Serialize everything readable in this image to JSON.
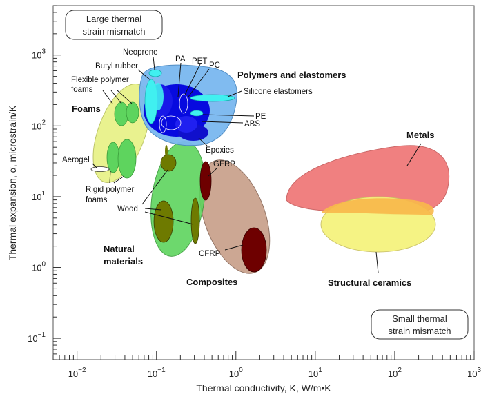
{
  "chart_data": {
    "type": "scatter",
    "xlabel": "Thermal conductivity, K, W/m•K",
    "ylabel": "Thermal expansion, α, microstrain/K",
    "xscale": "log",
    "yscale": "log",
    "xlim": [
      0.005,
      1000
    ],
    "ylim": [
      0.05,
      5000
    ],
    "x_ticks": [
      {
        "value": 0.01,
        "base": "10",
        "exp": "−2"
      },
      {
        "value": 0.1,
        "base": "10",
        "exp": "−1"
      },
      {
        "value": 1,
        "base": "10",
        "exp": "0"
      },
      {
        "value": 10,
        "base": "10",
        "exp": "1"
      },
      {
        "value": 100,
        "base": "10",
        "exp": "2"
      },
      {
        "value": 1000,
        "base": "10",
        "exp": "3"
      }
    ],
    "y_ticks": [
      {
        "value": 0.1,
        "base": "10",
        "exp": "−1"
      },
      {
        "value": 1,
        "base": "10",
        "exp": "0"
      },
      {
        "value": 10,
        "base": "10",
        "exp": "1"
      },
      {
        "value": 100,
        "base": "10",
        "exp": "2"
      },
      {
        "value": 1000,
        "base": "10",
        "exp": "3"
      }
    ],
    "corner_notes": {
      "top_left": [
        "Large thermal",
        "strain mismatch"
      ],
      "bottom_right": [
        "Small thermal",
        "strain mismatch"
      ]
    },
    "families": [
      {
        "name": "Polymers and elastomers",
        "x": 0.6,
        "y": 150,
        "color": "#7ab8f0"
      },
      {
        "name": "Foams",
        "x": 0.055,
        "y": 90,
        "color": "#e8f28a"
      },
      {
        "name": "Natural materials",
        "x": 0.3,
        "y": 10,
        "color": "#5ed45e"
      },
      {
        "name": "Composites",
        "x": 2,
        "y": 5,
        "color": "#c8a08a"
      },
      {
        "name": "Metals",
        "x": 120,
        "y": 20,
        "color": "#f07a7a"
      },
      {
        "name": "Structural ceramics",
        "x": 70,
        "y": 4,
        "color": "#f5f27a"
      }
    ],
    "materials": [
      {
        "name": "Neoprene",
        "x": 0.13,
        "y": 560,
        "color": "#40f0f0"
      },
      {
        "name": "Butyl rubber",
        "x": 0.13,
        "y": 200,
        "color": "#40f0f0"
      },
      {
        "name": "PA",
        "x": 0.28,
        "y": 170,
        "color": "#0000dd"
      },
      {
        "name": "PET",
        "x": 0.36,
        "y": 140,
        "color": "#0000dd"
      },
      {
        "name": "PC",
        "x": 0.45,
        "y": 140,
        "color": "#40f0f0"
      },
      {
        "name": "Silicone elastomers",
        "x": 1.0,
        "y": 250,
        "color": "#40f0f0"
      },
      {
        "name": "PE",
        "x": 0.45,
        "y": 135,
        "color": "#40f0f0"
      },
      {
        "name": "ABS",
        "x": 0.3,
        "y": 95,
        "color": "#0000dd"
      },
      {
        "name": "Epoxies",
        "x": 0.35,
        "y": 70,
        "color": "#0000dd"
      },
      {
        "name": "Flexible polymer foams",
        "x": 0.05,
        "y": 170,
        "color": "#5ed45e"
      },
      {
        "name": "Rigid polymer foams",
        "x": 0.05,
        "y": 50,
        "color": "#5ed45e"
      },
      {
        "name": "Aerogel",
        "x": 0.025,
        "y": 20,
        "color": "#ffffff"
      },
      {
        "name": "Wood",
        "x": 0.14,
        "y": 7,
        "color": "#6e7a00"
      },
      {
        "name": "GFRP",
        "x": 0.75,
        "y": 15,
        "color": "#6e0000"
      },
      {
        "name": "CFRP",
        "x": 2,
        "y": 2,
        "color": "#6e0000"
      }
    ]
  }
}
